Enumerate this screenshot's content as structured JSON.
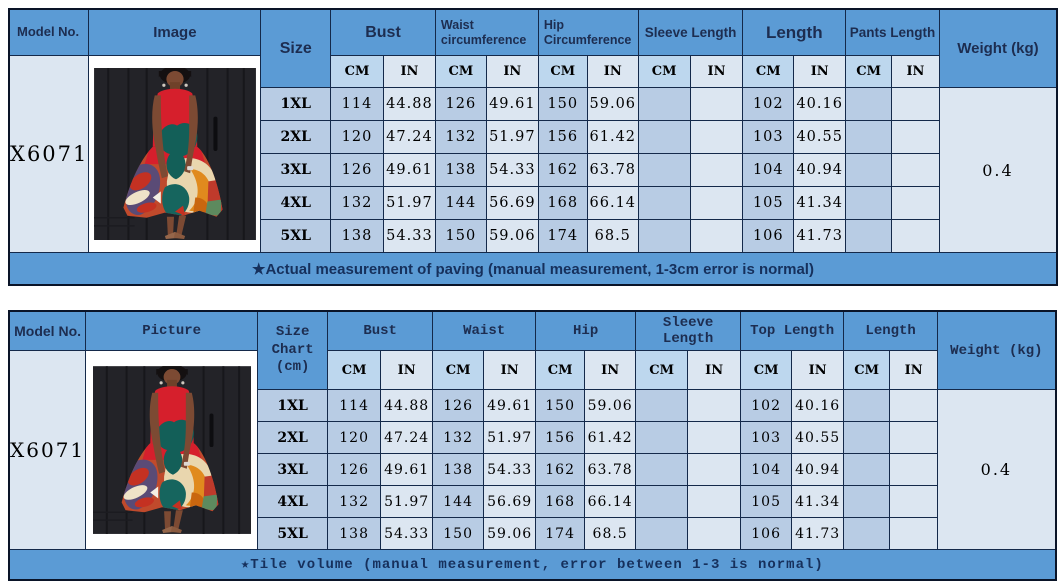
{
  "colors": {
    "header_blue": "#5b9bd5",
    "subheader_cm": "#bdd7ee",
    "subheader_in": "#dce6f1",
    "cell_cm": "#b8cce4",
    "cell_in": "#dce6f1",
    "border": "#14294a",
    "footer_text": "#16305c"
  },
  "units": {
    "cm": "CM",
    "in": "IN"
  },
  "table1": {
    "model_header": "Model No.",
    "image_header": "Image",
    "size_header": "Size",
    "groups": [
      "Bust",
      "Waist circumference",
      "Hip Circumference",
      "Sleeve Length",
      "Length",
      "Pants Length"
    ],
    "weight_header": "Weight (kg)",
    "model_no": "X6071",
    "weight_value": "0.4",
    "rows": [
      [
        "1XL",
        "114",
        "44.88",
        "126",
        "49.61",
        "150",
        "59.06",
        "",
        "",
        "102",
        "40.16",
        "",
        ""
      ],
      [
        "2XL",
        "120",
        "47.24",
        "132",
        "51.97",
        "156",
        "61.42",
        "",
        "",
        "103",
        "40.55",
        "",
        ""
      ],
      [
        "3XL",
        "126",
        "49.61",
        "138",
        "54.33",
        "162",
        "63.78",
        "",
        "",
        "104",
        "40.94",
        "",
        ""
      ],
      [
        "4XL",
        "132",
        "51.97",
        "144",
        "56.69",
        "168",
        "66.14",
        "",
        "",
        "105",
        "41.34",
        "",
        ""
      ],
      [
        "5XL",
        "138",
        "54.33",
        "150",
        "59.06",
        "174",
        "68.5",
        "",
        "",
        "106",
        "41.73",
        "",
        ""
      ]
    ],
    "footer": "★Actual measurement of paving (manual measurement, 1-3cm error is normal)"
  },
  "table2": {
    "model_header": "Model No.",
    "picture_header": "Picture",
    "size_header": "Size Chart (cm)",
    "groups": [
      "Bust",
      "Waist",
      "Hip",
      "Sleeve Length",
      "Top Length",
      "Length"
    ],
    "weight_header": "Weight (kg)",
    "model_no": "X6071",
    "weight_value": "0.4",
    "rows": [
      [
        "1XL",
        "114",
        "44.88",
        "126",
        "49.61",
        "150",
        "59.06",
        "",
        "",
        "102",
        "40.16",
        "",
        ""
      ],
      [
        "2XL",
        "120",
        "47.24",
        "132",
        "51.97",
        "156",
        "61.42",
        "",
        "",
        "103",
        "40.55",
        "",
        ""
      ],
      [
        "3XL",
        "126",
        "49.61",
        "138",
        "54.33",
        "162",
        "63.78",
        "",
        "",
        "104",
        "40.94",
        "",
        ""
      ],
      [
        "4XL",
        "132",
        "51.97",
        "144",
        "56.69",
        "168",
        "66.14",
        "",
        "",
        "105",
        "41.34",
        "",
        ""
      ],
      [
        "5XL",
        "138",
        "54.33",
        "150",
        "59.06",
        "174",
        "68.5",
        "",
        "",
        "106",
        "41.73",
        "",
        ""
      ]
    ],
    "footer": "★Tile volume (manual measurement, error between 1-3 is normal)"
  },
  "photo": {
    "name": "product-photo-red-printed-dress"
  }
}
